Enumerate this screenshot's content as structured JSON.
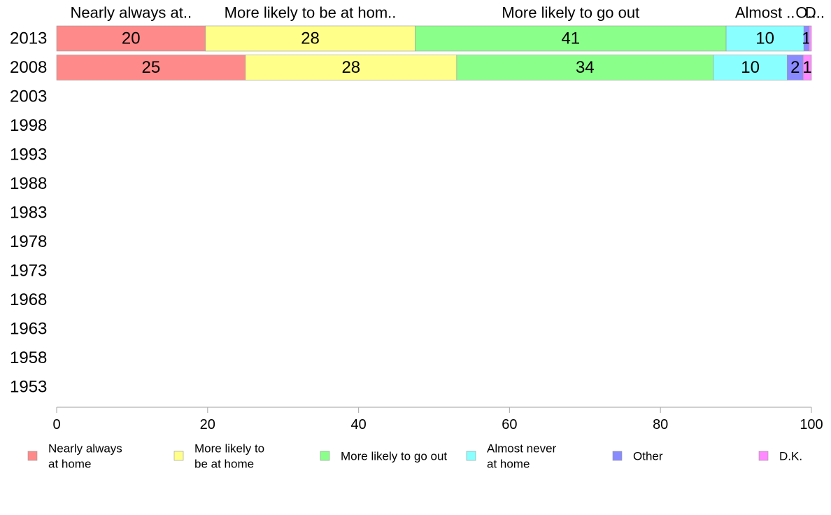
{
  "chart_data": {
    "type": "bar",
    "orientation": "horizontal",
    "stacked": true,
    "categories": [
      "2013",
      "2008",
      "2003",
      "1998",
      "1993",
      "1988",
      "1983",
      "1978",
      "1973",
      "1968",
      "1963",
      "1958",
      "1953"
    ],
    "top_labels": [
      "Nearly always at..",
      "More likely to be at hom..",
      "More likely to go out",
      "Almost ..",
      "O..",
      "D.."
    ],
    "series": [
      {
        "name": "Nearly always at home",
        "legend_lines": [
          "Nearly always",
          "at home"
        ],
        "color": "#ff8a8a",
        "values": [
          19.7,
          25,
          null,
          null,
          null,
          null,
          null,
          null,
          null,
          null,
          null,
          null,
          null
        ],
        "labels": [
          "20",
          "25",
          "",
          "",
          "",
          "",
          "",
          "",
          "",
          "",
          "",
          "",
          ""
        ]
      },
      {
        "name": "More likely to be at home",
        "legend_lines": [
          "More likely to",
          "be at home"
        ],
        "color": "#ffff8a",
        "values": [
          27.8,
          28,
          null,
          null,
          null,
          null,
          null,
          null,
          null,
          null,
          null,
          null,
          null
        ],
        "labels": [
          "28",
          "28",
          "",
          "",
          "",
          "",
          "",
          "",
          "",
          "",
          "",
          "",
          ""
        ]
      },
      {
        "name": "More likely to go out",
        "legend_lines": [
          "More likely to go out"
        ],
        "color": "#8aff8a",
        "values": [
          41.2,
          34,
          null,
          null,
          null,
          null,
          null,
          null,
          null,
          null,
          null,
          null,
          null
        ],
        "labels": [
          "41",
          "34",
          "",
          "",
          "",
          "",
          "",
          "",
          "",
          "",
          "",
          "",
          ""
        ]
      },
      {
        "name": "Almost never at home",
        "legend_lines": [
          "Almost never",
          "at home"
        ],
        "color": "#8affff",
        "values": [
          10.3,
          9.8,
          null,
          null,
          null,
          null,
          null,
          null,
          null,
          null,
          null,
          null,
          null
        ],
        "labels": [
          "10",
          "10",
          "",
          "",
          "",
          "",
          "",
          "",
          "",
          "",
          "",
          "",
          ""
        ]
      },
      {
        "name": "Other",
        "legend_lines": [
          "Other"
        ],
        "color": "#8a8aff",
        "values": [
          0.7,
          2.1,
          null,
          null,
          null,
          null,
          null,
          null,
          null,
          null,
          null,
          null,
          null
        ],
        "labels": [
          "1",
          "2",
          "",
          "",
          "",
          "",
          "",
          "",
          "",
          "",
          "",
          "",
          ""
        ]
      },
      {
        "name": "D.K.",
        "legend_lines": [
          "D.K."
        ],
        "color": "#ff8aff",
        "values": [
          0.3,
          1.1,
          null,
          null,
          null,
          null,
          null,
          null,
          null,
          null,
          null,
          null,
          null
        ],
        "labels": [
          "",
          "1",
          "",
          "",
          "",
          "",
          "",
          "",
          "",
          "",
          "",
          "",
          ""
        ]
      }
    ],
    "xlim": [
      0,
      100
    ],
    "xticks": [
      0,
      20,
      40,
      60,
      80,
      100
    ],
    "grid": false,
    "legend_position": "bottom"
  }
}
